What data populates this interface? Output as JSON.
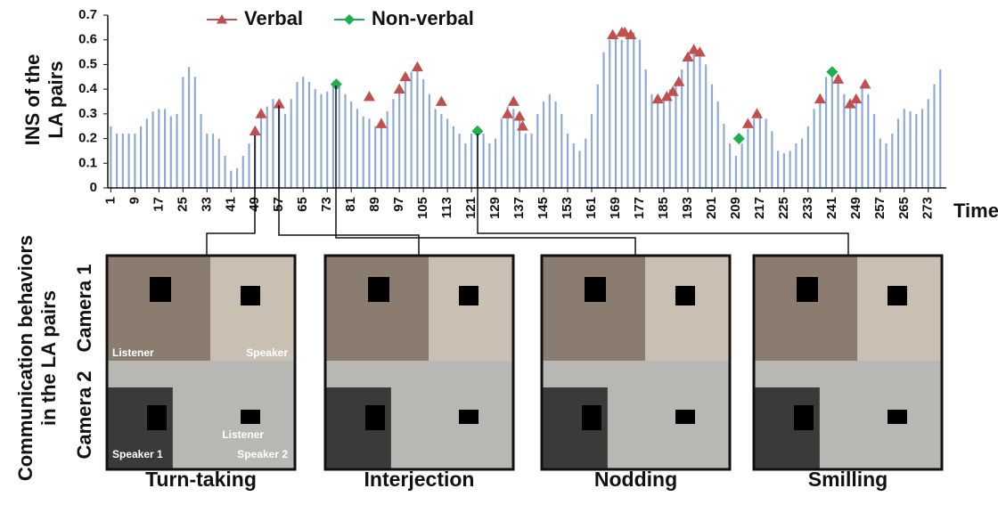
{
  "chart_data": {
    "type": "bar",
    "y_label": [
      "INS of the",
      "LA pairs"
    ],
    "x_label": "Time",
    "color": "#8eaad6",
    "x": [
      1,
      3,
      5,
      7,
      9,
      11,
      13,
      15,
      17,
      19,
      21,
      23,
      25,
      27,
      29,
      31,
      33,
      35,
      37,
      39,
      41,
      43,
      45,
      47,
      49,
      51,
      53,
      55,
      57,
      59,
      61,
      63,
      65,
      67,
      69,
      71,
      73,
      75,
      77,
      79,
      81,
      83,
      85,
      87,
      89,
      91,
      93,
      95,
      97,
      99,
      101,
      103,
      105,
      107,
      109,
      111,
      113,
      115,
      117,
      119,
      121,
      123,
      125,
      127,
      129,
      131,
      133,
      135,
      137,
      139,
      141,
      143,
      145,
      147,
      149,
      151,
      153,
      155,
      157,
      159,
      161,
      163,
      165,
      167,
      169,
      171,
      173,
      175,
      177,
      179,
      181,
      183,
      185,
      187,
      189,
      191,
      193,
      195,
      197,
      199,
      201,
      203,
      205,
      207,
      209,
      211,
      213,
      215,
      217,
      219,
      221,
      223,
      225,
      227,
      229,
      231,
      233,
      235,
      237,
      239,
      241,
      243,
      245,
      247,
      249,
      251,
      253,
      255,
      257,
      259,
      261,
      263,
      265,
      267,
      269,
      271,
      273,
      275,
      277
    ],
    "values": [
      0.25,
      0.22,
      0.22,
      0.22,
      0.22,
      0.25,
      0.28,
      0.31,
      0.32,
      0.32,
      0.29,
      0.3,
      0.45,
      0.49,
      0.45,
      0.3,
      0.22,
      0.22,
      0.2,
      0.13,
      0.07,
      0.08,
      0.13,
      0.18,
      0.24,
      0.29,
      0.33,
      0.36,
      0.34,
      0.3,
      0.36,
      0.43,
      0.45,
      0.43,
      0.4,
      0.38,
      0.39,
      0.42,
      0.41,
      0.38,
      0.35,
      0.32,
      0.29,
      0.28,
      0.25,
      0.28,
      0.31,
      0.36,
      0.4,
      0.44,
      0.47,
      0.48,
      0.44,
      0.38,
      0.32,
      0.3,
      0.28,
      0.25,
      0.22,
      0.18,
      0.22,
      0.25,
      0.22,
      0.18,
      0.2,
      0.28,
      0.33,
      0.32,
      0.28,
      0.22,
      0.22,
      0.3,
      0.35,
      0.38,
      0.35,
      0.3,
      0.22,
      0.18,
      0.15,
      0.2,
      0.3,
      0.42,
      0.55,
      0.6,
      0.61,
      0.6,
      0.62,
      0.63,
      0.6,
      0.48,
      0.38,
      0.35,
      0.36,
      0.4,
      0.42,
      0.48,
      0.53,
      0.56,
      0.55,
      0.5,
      0.42,
      0.35,
      0.26,
      0.18,
      0.13,
      0.18,
      0.24,
      0.28,
      0.3,
      0.28,
      0.23,
      0.15,
      0.14,
      0.15,
      0.18,
      0.2,
      0.25,
      0.32,
      0.38,
      0.45,
      0.47,
      0.43,
      0.38,
      0.33,
      0.36,
      0.41,
      0.38,
      0.3,
      0.2,
      0.18,
      0.22,
      0.28,
      0.32,
      0.31,
      0.3,
      0.32,
      0.36,
      0.42,
      0.48
    ],
    "series": [
      {
        "name": "Verbal",
        "color": "#c0504d",
        "marker": "triangle",
        "x": [
          49,
          51,
          57,
          87,
          91,
          97,
          99,
          103,
          111,
          133,
          135,
          137,
          138,
          168,
          171,
          172,
          174,
          183,
          186,
          188,
          190,
          193,
          195,
          197,
          213,
          216,
          237,
          243,
          247,
          249,
          252
        ],
        "values": [
          0.23,
          0.3,
          0.34,
          0.37,
          0.26,
          0.4,
          0.45,
          0.49,
          0.35,
          0.3,
          0.35,
          0.29,
          0.25,
          0.62,
          0.63,
          0.63,
          0.62,
          0.36,
          0.37,
          0.39,
          0.43,
          0.53,
          0.56,
          0.55,
          0.26,
          0.3,
          0.36,
          0.44,
          0.34,
          0.36,
          0.42
        ]
      },
      {
        "name": "Non-verbal",
        "color": "#1fae4b",
        "marker": "diamond",
        "x": [
          76,
          123,
          210,
          241
        ],
        "values": [
          0.42,
          0.23,
          0.2,
          0.47
        ]
      }
    ],
    "xlim": [
      0,
      279
    ],
    "ylim": [
      0,
      0.7
    ],
    "xticks": [
      1,
      9,
      17,
      25,
      33,
      41,
      49,
      57,
      65,
      73,
      81,
      89,
      97,
      105,
      113,
      121,
      129,
      137,
      145,
      153,
      161,
      169,
      177,
      185,
      193,
      201,
      209,
      217,
      225,
      233,
      241,
      249,
      257,
      265,
      273
    ],
    "yticks": [
      0,
      0.1,
      0.2,
      0.3,
      0.4,
      0.5,
      0.6,
      0.7
    ]
  },
  "photo_panels": {
    "side_title": [
      "Communication behaviors",
      "in the LA pairs"
    ],
    "camera_labels": [
      "Camera 1",
      "Camera 2"
    ],
    "panels": [
      {
        "caption": "Turn-taking",
        "camera1_labels": [
          "Listener",
          "Speaker"
        ],
        "camera2_labels": [
          "Listener",
          "Speaker 1",
          "Speaker 2"
        ]
      },
      {
        "caption": "Interjection"
      },
      {
        "caption": "Nodding"
      },
      {
        "caption": "Smilling"
      }
    ]
  }
}
